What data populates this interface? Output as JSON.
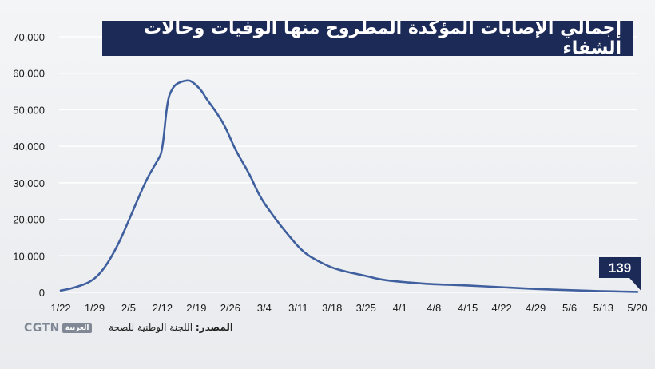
{
  "title": "إجمالي الإصابات المؤكدة المطروح منها الوفيات وحالات الشفاء",
  "footer": {
    "logo_text": "CGTN",
    "logo_arabic": "العربية",
    "source_label": "المصدر:",
    "source_text": "اللجنة الوطنية للصحة"
  },
  "colors": {
    "line": "#3f5f9e",
    "banner": "#1c2a57",
    "grid": "#ffffff"
  },
  "chart_data": {
    "type": "line",
    "title": "إجمالي الإصابات المؤكدة المطروح منها الوفيات وحالات الشفاء",
    "xlabel": "",
    "ylabel": "",
    "ylim": [
      0,
      70000
    ],
    "yticks": [
      0,
      10000,
      20000,
      30000,
      40000,
      50000,
      60000,
      70000
    ],
    "ytick_labels": [
      "0",
      "10,000",
      "20,000",
      "30,000",
      "40,000",
      "50,000",
      "60,000",
      "70,000"
    ],
    "xtick_labels": [
      "1/22",
      "1/29",
      "2/5",
      "2/12",
      "2/19",
      "2/26",
      "3/4",
      "3/11",
      "3/18",
      "3/25",
      "4/1",
      "4/8",
      "4/15",
      "4/22",
      "4/29",
      "5/6",
      "5/13",
      "5/20"
    ],
    "grid": true,
    "x_start": "1/22",
    "x_end": "5/20",
    "series": [
      {
        "points": [
          [
            "1/22",
            500
          ],
          [
            "1/24",
            1000
          ],
          [
            "1/26",
            1800
          ],
          [
            "1/28",
            2800
          ],
          [
            "1/30",
            4900
          ],
          [
            "2/1",
            8600
          ],
          [
            "2/3",
            13500
          ],
          [
            "2/5",
            19500
          ],
          [
            "2/7",
            25800
          ],
          [
            "2/9",
            31700
          ],
          [
            "2/11",
            36100
          ],
          [
            "2/12",
            38600
          ],
          [
            "2/13",
            52600
          ],
          [
            "2/14",
            55800
          ],
          [
            "2/15",
            57300
          ],
          [
            "2/17",
            58100
          ],
          [
            "2/18",
            57900
          ],
          [
            "2/20",
            55400
          ],
          [
            "2/21",
            53100
          ],
          [
            "2/23",
            49600
          ],
          [
            "2/25",
            45300
          ],
          [
            "2/27",
            39000
          ],
          [
            "3/1",
            32400
          ],
          [
            "3/3",
            26300
          ],
          [
            "3/6",
            20600
          ],
          [
            "3/9",
            15600
          ],
          [
            "3/12",
            11000
          ],
          [
            "3/15",
            8600
          ],
          [
            "3/18",
            6700
          ],
          [
            "3/21",
            5600
          ],
          [
            "3/25",
            4500
          ],
          [
            "3/28",
            3500
          ],
          [
            "4/1",
            2900
          ],
          [
            "4/5",
            2500
          ],
          [
            "4/8",
            2200
          ],
          [
            "4/15",
            1900
          ],
          [
            "4/22",
            1400
          ],
          [
            "4/29",
            900
          ],
          [
            "5/6",
            600
          ],
          [
            "5/13",
            300
          ],
          [
            "5/20",
            139
          ]
        ]
      }
    ],
    "annotations": [
      {
        "text": "139",
        "x": "5/20",
        "y": 139
      }
    ]
  }
}
